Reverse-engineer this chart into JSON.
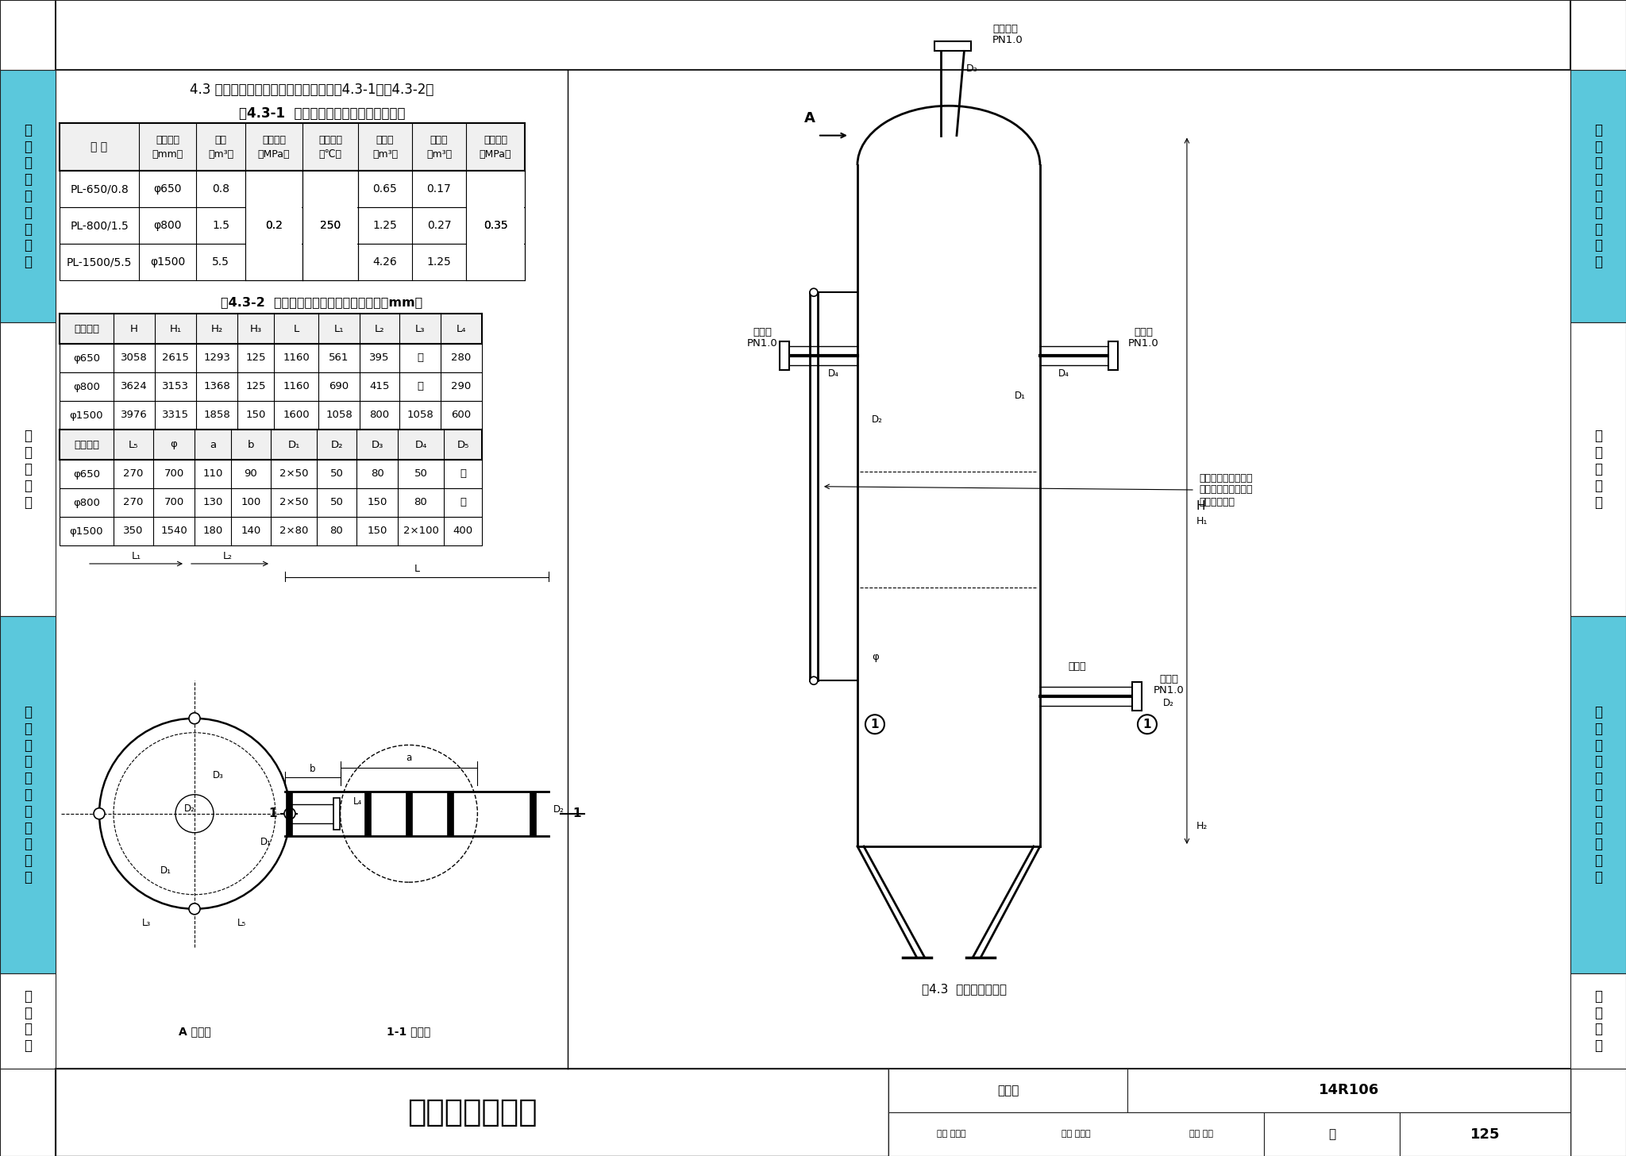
{
  "page_title": "14R106",
  "page_number": "125",
  "drawing_title": "连续排污扩容器",
  "section_title": "4.3 连续排污扩容器（规格性能参数见表4.3-1和表4.3-2）",
  "table1_title": "表4.3-1  锅炉连续排污扩容器规格性能表",
  "table1_headers_line1": [
    "型 号",
    "公称直径",
    "容积",
    "工作压力",
    "工作温度",
    "汽容积",
    "水容积",
    "试验压力"
  ],
  "table1_headers_line2": [
    "",
    "（mm）",
    "（m³）",
    "（MPa）",
    "（℃）",
    "（m³）",
    "（m³）",
    "（MPa）"
  ],
  "table1_data": [
    [
      "PL-650/0.8",
      "φ650",
      "0.8",
      "",
      "",
      "0.65",
      "0.17",
      ""
    ],
    [
      "PL-800/1.5",
      "φ800",
      "1.5",
      "0.2",
      "250",
      "1.25",
      "0.27",
      "0.35"
    ],
    [
      "PL-1500/5.5",
      "φ1500",
      "5.5",
      "",
      "",
      "4.26",
      "1.25",
      ""
    ]
  ],
  "table2_title": "表4.3-2  锅炉连续排污扩容器结构尺寸表（mm）",
  "table2_headers1": [
    "公称直径",
    "H",
    "H1",
    "H2",
    "H3",
    "L",
    "L1",
    "L2",
    "L3",
    "L4"
  ],
  "table2_headers1_display": [
    "公称直径",
    "H",
    "H₁",
    "H₂",
    "H₃",
    "L",
    "L₁",
    "L₂",
    "L₃",
    "L₄"
  ],
  "table2_data1": [
    [
      "φ650",
      "3058",
      "2615",
      "1293",
      "125",
      "1160",
      "561",
      "395",
      "无",
      "280"
    ],
    [
      "φ800",
      "3624",
      "3153",
      "1368",
      "125",
      "1160",
      "690",
      "415",
      "无",
      "290"
    ],
    [
      "φ1500",
      "3976",
      "3315",
      "1858",
      "150",
      "1600",
      "1058",
      "800",
      "1058",
      "600"
    ]
  ],
  "table2_headers2_display": [
    "公称直径",
    "L₅",
    "φ",
    "a",
    "b",
    "D₁",
    "D₂",
    "D₃",
    "D₄",
    "D₅"
  ],
  "table2_data2": [
    [
      "φ650",
      "270",
      "700",
      "110",
      "90",
      "2×50",
      "50",
      "80",
      "50",
      "无"
    ],
    [
      "φ800",
      "270",
      "700",
      "130",
      "100",
      "2×50",
      "50",
      "150",
      "80",
      "无"
    ],
    [
      "φ1500",
      "350",
      "1540",
      "180",
      "140",
      "2×80",
      "80",
      "150",
      "2×100",
      "400"
    ]
  ],
  "sidebar_sections": [
    {
      "label": "热\n力\n管\n道\n自\n然\n热\n补\n偿",
      "color": "#5bc8dc"
    },
    {
      "label": "烟\n风\n道\n附\n件",
      "color": "#ffffff"
    },
    {
      "label": "排\n污\n降\n温\n池\n与\n排\n污\n扩\n容\n器",
      "color": "#5bc8dc"
    },
    {
      "label": "工\n程\n实\n例",
      "color": "#ffffff"
    }
  ],
  "figure_caption": "图4.3  连续排污扩容器",
  "bg_color": "#ffffff"
}
